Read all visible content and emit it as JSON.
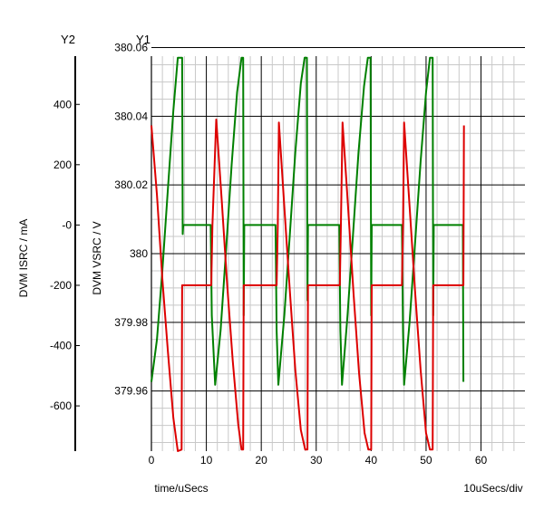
{
  "chart_data": {
    "type": "line",
    "xlabel": "time/uSecs",
    "x_scale_label": "10uSecs/div",
    "xlim": [
      0,
      68
    ],
    "x_ticks": [
      0,
      10,
      20,
      30,
      40,
      50,
      60
    ],
    "y_axes": {
      "y1": {
        "name": "Y1",
        "label": "DVM VSRC / V",
        "ylim": [
          379.9425,
          380.0575
        ],
        "ticks": [
          379.96,
          379.98,
          380,
          380.02,
          380.04,
          380.06
        ],
        "tick_labels": [
          "379.96",
          "379.98",
          "380",
          "380.02",
          "380.04",
          "380.06"
        ]
      },
      "y2": {
        "name": "Y2",
        "label": "DVM ISRC / mA",
        "ylim": [
          -750,
          560
        ],
        "ticks": [
          -600,
          -400,
          -200,
          0,
          200,
          400
        ],
        "tick_labels": [
          "-600",
          "-400",
          "-200",
          "-0",
          "200",
          "400"
        ]
      }
    },
    "grid": true,
    "series": [
      {
        "axis": "y2",
        "color": "#008000",
        "points": [
          [
            0.0,
            -520
          ],
          [
            1.0,
            -380
          ],
          [
            2.0,
            -150
          ],
          [
            3.0,
            120
          ],
          [
            4.0,
            380
          ],
          [
            4.8,
            555
          ],
          [
            5.6,
            555
          ],
          [
            5.7,
            -30
          ],
          [
            5.8,
            0
          ],
          [
            10.8,
            0
          ],
          [
            11.0,
            -300
          ],
          [
            11.6,
            -530
          ],
          [
            12.6,
            -350
          ],
          [
            13.6,
            -80
          ],
          [
            14.6,
            200
          ],
          [
            15.6,
            440
          ],
          [
            16.4,
            555
          ],
          [
            16.7,
            555
          ],
          [
            16.8,
            -300
          ],
          [
            16.9,
            0
          ],
          [
            22.6,
            0
          ],
          [
            22.8,
            -350
          ],
          [
            23.1,
            -530
          ],
          [
            24.2,
            -300
          ],
          [
            25.2,
            -30
          ],
          [
            26.2,
            240
          ],
          [
            27.2,
            470
          ],
          [
            27.9,
            555
          ],
          [
            28.3,
            555
          ],
          [
            28.4,
            -250
          ],
          [
            28.5,
            0
          ],
          [
            34.2,
            0
          ],
          [
            34.4,
            -350
          ],
          [
            34.7,
            -530
          ],
          [
            35.7,
            -300
          ],
          [
            36.7,
            -30
          ],
          [
            37.7,
            240
          ],
          [
            38.7,
            460
          ],
          [
            39.4,
            555
          ],
          [
            39.9,
            555
          ],
          [
            40.0,
            -300
          ],
          [
            40.1,
            0
          ],
          [
            45.6,
            0
          ],
          [
            45.8,
            -350
          ],
          [
            46.0,
            -530
          ],
          [
            47.0,
            -320
          ],
          [
            48.0,
            -60
          ],
          [
            49.0,
            210
          ],
          [
            50.0,
            440
          ],
          [
            50.7,
            555
          ],
          [
            51.2,
            555
          ],
          [
            51.3,
            -300
          ],
          [
            51.4,
            0
          ],
          [
            56.7,
            0
          ],
          [
            56.8,
            -520
          ]
        ]
      },
      {
        "axis": "y2",
        "color": "#dd0000",
        "points": [
          [
            0.0,
            330
          ],
          [
            1.0,
            100
          ],
          [
            2.0,
            -180
          ],
          [
            3.0,
            -420
          ],
          [
            4.0,
            -640
          ],
          [
            4.8,
            -750
          ],
          [
            5.5,
            -745
          ],
          [
            5.6,
            -200
          ],
          [
            6.2,
            -200
          ],
          [
            10.9,
            -200
          ],
          [
            11.1,
            0
          ],
          [
            11.8,
            350
          ],
          [
            12.8,
            80
          ],
          [
            13.8,
            -200
          ],
          [
            14.8,
            -450
          ],
          [
            15.8,
            -660
          ],
          [
            16.4,
            -745
          ],
          [
            16.7,
            -745
          ],
          [
            16.8,
            -200
          ],
          [
            17.0,
            -200
          ],
          [
            22.8,
            -200
          ],
          [
            23.0,
            0
          ],
          [
            23.2,
            340
          ],
          [
            24.2,
            60
          ],
          [
            25.2,
            -220
          ],
          [
            26.2,
            -480
          ],
          [
            27.2,
            -680
          ],
          [
            28.0,
            -745
          ],
          [
            28.4,
            -745
          ],
          [
            28.5,
            -200
          ],
          [
            29.0,
            -200
          ],
          [
            34.3,
            -200
          ],
          [
            34.5,
            0
          ],
          [
            34.8,
            340
          ],
          [
            35.8,
            60
          ],
          [
            36.8,
            -230
          ],
          [
            37.8,
            -490
          ],
          [
            38.8,
            -690
          ],
          [
            39.5,
            -745
          ],
          [
            40.0,
            -745
          ],
          [
            40.1,
            -200
          ],
          [
            40.6,
            -200
          ],
          [
            45.6,
            -200
          ],
          [
            45.8,
            0
          ],
          [
            46.0,
            340
          ],
          [
            47.0,
            60
          ],
          [
            48.0,
            -220
          ],
          [
            49.0,
            -480
          ],
          [
            50.0,
            -690
          ],
          [
            50.7,
            -745
          ],
          [
            51.2,
            -745
          ],
          [
            51.3,
            -200
          ],
          [
            51.8,
            -200
          ],
          [
            56.8,
            -200
          ],
          [
            56.9,
            330
          ]
        ]
      }
    ]
  }
}
